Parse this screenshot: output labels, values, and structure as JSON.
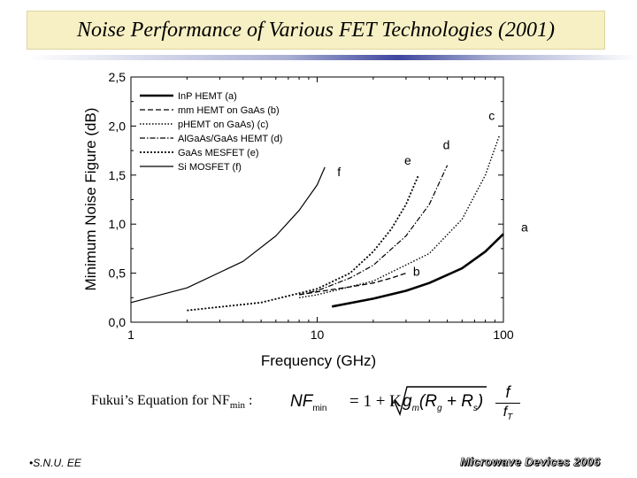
{
  "slide": {
    "title": "Noise Performance of Various FET Technologies (2001)",
    "footer_left": "•S.N.U. EE",
    "footer_right": "Microwave Devices 2006"
  },
  "equation": {
    "label_prefix": "Fukui’s Equation for NF",
    "label_sub": "min",
    "label_suffix": " :",
    "lhs": "NF",
    "lhs_sub": "min",
    "mid": "= 1 + K",
    "radicand_g": "g",
    "radicand_g_sub": "m",
    "radicand_open": "(R",
    "radicand_r1_sub": "g",
    "radicand_plus": " + R",
    "radicand_r2_sub": "s",
    "radicand_close": ")",
    "frac_num": "f",
    "frac_den": "f",
    "frac_den_sub": "T"
  },
  "chart_data": {
    "type": "line",
    "xlabel": "Frequency (GHz)",
    "ylabel": "Minimum Noise Figure (dB)",
    "xscale": "log",
    "xlim": [
      1,
      100
    ],
    "ylim": [
      0,
      2.5
    ],
    "xticks": [
      "1",
      "10",
      "100"
    ],
    "yticks": [
      "0,0",
      "0,5",
      "1,0",
      "1,5",
      "2,0",
      "2,5"
    ],
    "legend_position": "top-left",
    "series": [
      {
        "name": "InP HEMT (a)",
        "label": "a",
        "style": "solid-thick",
        "x": [
          12,
          20,
          30,
          40,
          60,
          80,
          100
        ],
        "y": [
          0.16,
          0.24,
          0.32,
          0.4,
          0.55,
          0.72,
          0.9
        ]
      },
      {
        "name": "mm HEMT on GaAs (b)",
        "label": "b",
        "style": "dashed",
        "x": [
          8,
          10,
          15,
          20,
          25,
          30
        ],
        "y": [
          0.28,
          0.31,
          0.36,
          0.4,
          0.45,
          0.5
        ]
      },
      {
        "name": "pHEMT on GaAs) (c)",
        "label": "c",
        "style": "dotted",
        "x": [
          8,
          10,
          20,
          40,
          60,
          80,
          95
        ],
        "y": [
          0.25,
          0.28,
          0.42,
          0.7,
          1.05,
          1.5,
          1.9
        ]
      },
      {
        "name": "AlGaAs/GaAs HEMT (d)",
        "label": "d",
        "style": "dash-dot",
        "x": [
          8,
          10,
          15,
          20,
          30,
          40,
          50
        ],
        "y": [
          0.28,
          0.32,
          0.45,
          0.58,
          0.88,
          1.2,
          1.6
        ]
      },
      {
        "name": "GaAs MESFET (e)",
        "label": "e",
        "style": "dotted-bold",
        "x": [
          2,
          5,
          10,
          15,
          20,
          25,
          30,
          35
        ],
        "y": [
          0.12,
          0.2,
          0.34,
          0.5,
          0.72,
          0.95,
          1.2,
          1.5
        ]
      },
      {
        "name": "Si MOSFET (f)",
        "label": "f",
        "style": "solid",
        "x": [
          1,
          2,
          4,
          6,
          8,
          10,
          11
        ],
        "y": [
          0.2,
          0.35,
          0.62,
          0.88,
          1.14,
          1.4,
          1.58
        ]
      }
    ]
  }
}
